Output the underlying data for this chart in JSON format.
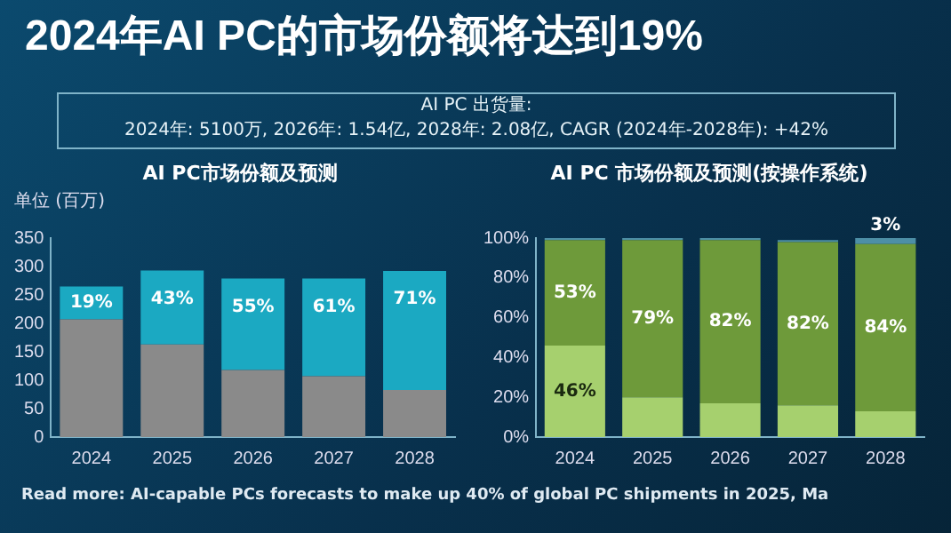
{
  "chart_data": [
    {
      "type": "other",
      "title": "2024年AI PC的市场份额将达到19%",
      "annotations": [
        "AI PC 出货量:",
        "2024年: 5100万, 2026年: 1.54亿, 2028年: 2.08亿, CAGR (2024年-2028年): +42%",
        "Read more: AI-capable PCs forecasts to make up 40% of global PC shipments in 2025, Ma"
      ]
    },
    {
      "type": "bar",
      "title": "AI PC市场份额及预测",
      "ylabel": "单位 (百万)",
      "categories": [
        "2024",
        "2025",
        "2026",
        "2027",
        "2028"
      ],
      "stacked": true,
      "ylim": [
        0,
        350
      ],
      "yticks": [
        0,
        50,
        100,
        150,
        200,
        250,
        300,
        350
      ],
      "grid": false,
      "legend": false,
      "series": [
        {
          "color": "#8a8a8a",
          "values": [
            207,
            163,
            118,
            107,
            83
          ]
        },
        {
          "color": "#1ba9c2",
          "values": [
            58,
            130,
            161,
            172,
            209
          ]
        }
      ],
      "annotations": [
        "19%",
        "43%",
        "55%",
        "61%",
        "71%"
      ]
    },
    {
      "type": "bar",
      "title": "AI PC 市场份额及预测(按操作系统)",
      "categories": [
        "2024",
        "2025",
        "2026",
        "2027",
        "2028"
      ],
      "stacked": true,
      "ylim": [
        0,
        100
      ],
      "yticks": [
        {
          "value": 0,
          "label": "0%"
        },
        {
          "value": 20,
          "label": "20%"
        },
        {
          "value": 40,
          "label": "40%"
        },
        {
          "value": 60,
          "label": "60%"
        },
        {
          "value": 80,
          "label": "80%"
        },
        {
          "value": 100,
          "label": "100%"
        }
      ],
      "grid": false,
      "legend": false,
      "series": [
        {
          "color": "#a6d06e",
          "values": [
            46,
            20,
            17,
            16,
            13
          ],
          "value_labels": [
            "46%",
            null,
            null,
            null,
            null
          ]
        },
        {
          "color": "#6e9a3a",
          "values": [
            53,
            79,
            82,
            82,
            84
          ],
          "value_labels": [
            "53%",
            "79%",
            "82%",
            "82%",
            "84%"
          ]
        },
        {
          "color": "#4d8fa6",
          "values": [
            1,
            1,
            1,
            1,
            3
          ],
          "value_labels": [
            null,
            null,
            null,
            null,
            "3%"
          ]
        }
      ]
    }
  ]
}
